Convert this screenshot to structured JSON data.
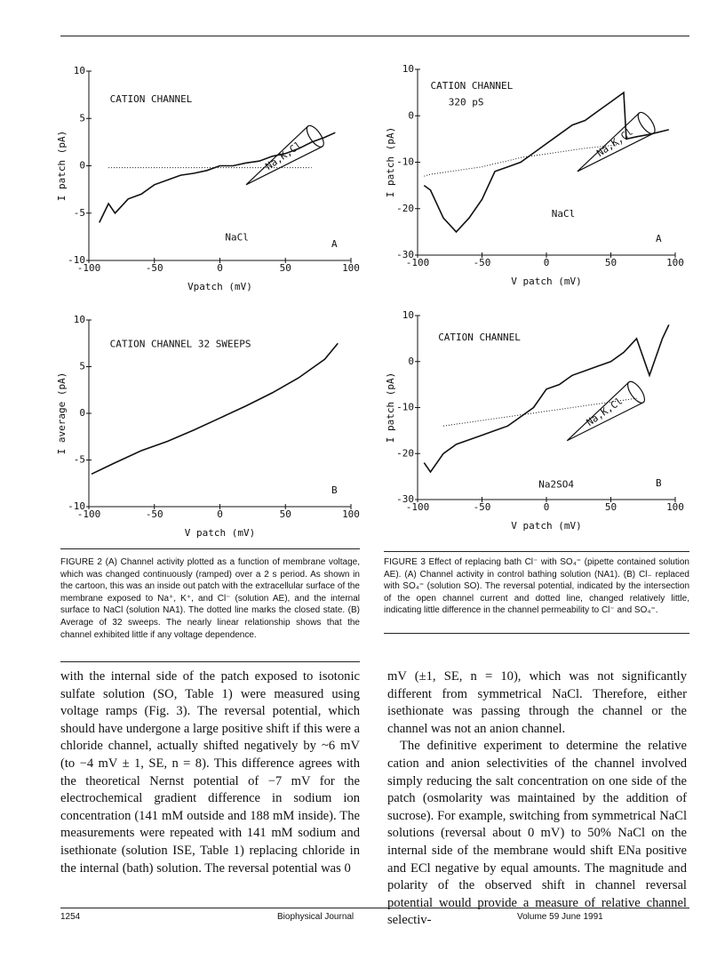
{
  "chart_data": [
    {
      "type": "line",
      "panel": "A",
      "ylabel": "I patch (pA)",
      "xlabel": "Vpatch (mV)",
      "annotations": [
        "CATION CHANNEL",
        "NaCl",
        "Na,K,Cl"
      ],
      "xlim": [
        -100,
        100
      ],
      "ylim": [
        -10,
        10
      ],
      "xticks": [
        -100,
        -50,
        0,
        50,
        100
      ],
      "yticks": [
        -10,
        -5,
        0,
        5,
        10
      ],
      "x": [
        -92,
        -85,
        -80,
        -70,
        -60,
        -50,
        -40,
        -30,
        -20,
        -10,
        0,
        10,
        20,
        30,
        40,
        50,
        60,
        70,
        80,
        88
      ],
      "series": [
        {
          "color": "#111",
          "line_style": "solid",
          "values": [
            -6,
            -4,
            -5,
            -3.5,
            -3,
            -2,
            -1.5,
            -1,
            -0.8,
            -0.5,
            0,
            0,
            0.3,
            0.5,
            1,
            1.3,
            1.8,
            2.5,
            3,
            3.5
          ]
        },
        {
          "color": "#111",
          "line_style": "dotted",
          "values": [
            null,
            -0.2,
            -0.2,
            -0.2,
            -0.2,
            -0.2,
            -0.2,
            -0.2,
            -0.2,
            -0.2,
            -0.2,
            -0.2,
            -0.2,
            -0.2,
            -0.2,
            -0.2,
            -0.2,
            -0.2,
            null,
            null
          ]
        }
      ]
    },
    {
      "type": "line",
      "panel": "B",
      "ylabel": "I average (pA)",
      "xlabel": "V patch (mV)",
      "annotations": [
        "CATION CHANNEL 32 SWEEPS"
      ],
      "xlim": [
        -100,
        100
      ],
      "ylim": [
        -10,
        10
      ],
      "xticks": [
        -100,
        -50,
        0,
        50,
        100
      ],
      "yticks": [
        -10,
        -5,
        0,
        5,
        10
      ],
      "x": [
        -98,
        -80,
        -60,
        -40,
        -20,
        0,
        20,
        40,
        60,
        80,
        90
      ],
      "series": [
        {
          "color": "#111",
          "line_style": "solid",
          "values": [
            -6.5,
            -5.3,
            -4,
            -3,
            -1.8,
            -0.5,
            0.8,
            2.2,
            3.8,
            5.8,
            7.5
          ]
        }
      ]
    },
    {
      "type": "line",
      "panel": "A",
      "ylabel": "I patch (pA)",
      "xlabel": "V patch (mV)",
      "annotations": [
        "CATION CHANNEL",
        "320 pS",
        "NaCl",
        "Na,K,Cl"
      ],
      "xlim": [
        -100,
        100
      ],
      "ylim": [
        -30,
        10
      ],
      "xticks": [
        -100,
        -50,
        0,
        50,
        100
      ],
      "yticks": [
        -30,
        -20,
        -10,
        0,
        10
      ],
      "x": [
        -95,
        -90,
        -80,
        -70,
        -60,
        -50,
        -40,
        -30,
        -20,
        -10,
        0,
        10,
        20,
        30,
        40,
        50,
        60,
        62,
        70,
        80,
        95
      ],
      "series": [
        {
          "color": "#111",
          "line_style": "solid",
          "values": [
            -15,
            -16,
            -22,
            -25,
            -22,
            -18,
            -12,
            -11,
            -10,
            -8,
            -6,
            -4,
            -2,
            -1,
            1,
            3,
            5,
            -5,
            -4.5,
            -4,
            -3
          ]
        },
        {
          "color": "#111",
          "line_style": "dotted",
          "values": [
            -13,
            -12.6,
            -12.2,
            -11.8,
            -11.4,
            -11,
            -10.3,
            -9.7,
            -9,
            -8.6,
            -8.2,
            -7.8,
            -7.4,
            -7,
            -6.7,
            -6.4,
            -6,
            null,
            null,
            null,
            null
          ]
        }
      ]
    },
    {
      "type": "line",
      "panel": "B",
      "ylabel": "I patch (pA)",
      "xlabel": "V patch (mV)",
      "annotations": [
        "CATION CHANNEL",
        "Na2SO4",
        "Na,K,Cl"
      ],
      "xlim": [
        -100,
        100
      ],
      "ylim": [
        -30,
        10
      ],
      "xticks": [
        -100,
        -50,
        0,
        50,
        100
      ],
      "yticks": [
        -30,
        -20,
        -10,
        0,
        10
      ],
      "x": [
        -95,
        -90,
        -80,
        -70,
        -60,
        -50,
        -40,
        -30,
        -20,
        -10,
        0,
        10,
        20,
        30,
        40,
        50,
        60,
        70,
        80,
        90,
        95
      ],
      "series": [
        {
          "color": "#111",
          "line_style": "solid",
          "values": [
            -22,
            -24,
            -20,
            -18,
            -17,
            -16,
            -15,
            -14,
            -12,
            -10,
            -6,
            -5,
            -3,
            -2,
            -1,
            0,
            2,
            5,
            -3,
            5,
            8
          ]
        },
        {
          "color": "#111",
          "line_style": "dotted",
          "values": [
            null,
            null,
            -14,
            -13.6,
            -13.2,
            -12.8,
            -12.4,
            -12,
            -11.6,
            -11.2,
            -10.8,
            -10.4,
            -10,
            -9.6,
            -9.2,
            -8.8,
            -8.4,
            -8,
            null,
            null,
            null
          ]
        }
      ]
    }
  ],
  "captions": [
    "FIGURE 2 (A) Channel activity plotted as a function of membrane voltage, which was changed continuously (ramped) over a 2 s period. As shown in the cartoon, this was an inside out patch with the extracellular surface of the membrane exposed to Na⁺, K⁺, and Cl⁻ (solution AE), and the internal surface to NaCl (solution NA1). The dotted line marks the closed state. (B) Average of 32 sweeps. The nearly linear relationship shows that the channel exhibited little if any voltage dependence.",
    "FIGURE 3 Effect of replacing bath Cl⁻ with SO₄⁼ (pipette contained solution AE). (A) Channel activity in control bathing solution (NA1). (B) Cl₋ replaced with SO₄⁼ (solution SO). The reversal potential, indicated by the intersection of the open channel current and dotted line, changed relatively little, indicating little difference in the channel permeability to Cl⁻ and SO₄⁼."
  ],
  "body": {
    "left": "with the internal side of the patch exposed to isotonic sulfate solution (SO, Table 1) were measured using voltage ramps (Fig. 3). The reversal potential, which should have undergone a large positive shift if this were a chloride channel, actually shifted negatively by ~6 mV (to −4 mV ± 1, SE, n = 8). This difference agrees with the theoretical Nernst potential of −7 mV for the electrochemical gradient difference in sodium ion concentration (141 mM outside and 188 mM inside). The measurements were repeated with 141 mM sodium and isethionate (solution ISE, Table 1) replacing chloride in the internal (bath) solution. The reversal potential was 0",
    "right": [
      "mV (±1, SE, n = 10), which was not significantly different from symmetrical NaCl. Therefore, either isethionate was passing through the channel or the channel was not an anion channel.",
      "The definitive experiment to determine the relative cation and anion selectivities of the channel involved simply reducing the salt concentration on one side of the patch (osmolarity was maintained by the addition of sucrose). For example, switching from symmetrical NaCl solutions (reversal about 0 mV) to 50% NaCl on the internal side of the membrane would shift ENa positive and ECl negative by equal amounts. The magnitude and polarity of the observed shift in channel reversal potential would provide a measure of relative channel selectiv-"
    ]
  },
  "footer": {
    "page": "1254",
    "journal": "Biophysical Journal",
    "issue": "Volume 59 June 1991"
  }
}
